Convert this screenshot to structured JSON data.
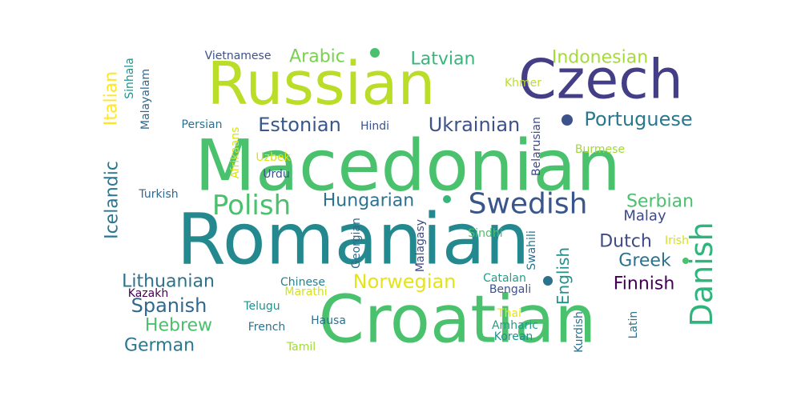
{
  "words": [
    {
      "text": "Macedonian",
      "color": "#4ac16d"
    },
    {
      "text": "Romanian",
      "color": "#23898e"
    },
    {
      "text": "Croatian",
      "color": "#4ac16d"
    },
    {
      "text": "Russian",
      "color": "#bade28"
    },
    {
      "text": "Czech",
      "color": "#433e85"
    },
    {
      "text": "Swedish",
      "color": "#39568c"
    },
    {
      "text": "Polish",
      "color": "#4ac16d"
    },
    {
      "text": "Danish",
      "color": "#2fb47c"
    },
    {
      "text": "Norwegian",
      "color": "#e5e419"
    },
    {
      "text": "Ukrainian",
      "color": "#3b528b"
    },
    {
      "text": "Estonian",
      "color": "#38588c"
    },
    {
      "text": "Portuguese",
      "color": "#2a788e"
    },
    {
      "text": "Hungarian",
      "color": "#2c728e"
    },
    {
      "text": "Arabic",
      "color": "#7ad151"
    },
    {
      "text": "Latvian",
      "color": "#35b779"
    },
    {
      "text": "Indonesian",
      "color": "#a5db36"
    },
    {
      "text": "Serbian",
      "color": "#4ac16d"
    },
    {
      "text": "Malay",
      "color": "#3e4989"
    },
    {
      "text": "Dutch",
      "color": "#3e4989"
    },
    {
      "text": "Greek",
      "color": "#2c728e"
    },
    {
      "text": "Finnish",
      "color": "#440154"
    },
    {
      "text": "English",
      "color": "#21918c"
    },
    {
      "text": "Spanish",
      "color": "#31688e"
    },
    {
      "text": "Lithuanian",
      "color": "#2c728e"
    },
    {
      "text": "Hebrew",
      "color": "#4ac16d"
    },
    {
      "text": "German",
      "color": "#2a788e"
    },
    {
      "text": "Icelandic",
      "color": "#2a788e"
    },
    {
      "text": "Italian",
      "color": "#fde725"
    },
    {
      "text": "Vietnamese",
      "color": "#3b528b"
    },
    {
      "text": "Sinhala",
      "color": "#21918c"
    },
    {
      "text": "Malayalam",
      "color": "#31688e"
    },
    {
      "text": "Persian",
      "color": "#2c728e"
    },
    {
      "text": "Afrikaans",
      "color": "#d8e219"
    },
    {
      "text": "Hindi",
      "color": "#3b528b"
    },
    {
      "text": "Khmer",
      "color": "#bade28"
    },
    {
      "text": "Belarusian",
      "color": "#3e4989"
    },
    {
      "text": "Burmese",
      "color": "#a0da39"
    },
    {
      "text": "Uzbek",
      "color": "#d8e219"
    },
    {
      "text": "Urdu",
      "color": "#3b528b"
    },
    {
      "text": "Turkish",
      "color": "#31688e"
    },
    {
      "text": "Malagasy",
      "color": "#3e4989"
    },
    {
      "text": "Georgian",
      "color": "#31688e"
    },
    {
      "text": "Sindhi",
      "color": "#4ac16d"
    },
    {
      "text": "Swahili",
      "color": "#2c728e"
    },
    {
      "text": "Irish",
      "color": "#d2e21b"
    },
    {
      "text": "Chinese",
      "color": "#26828e"
    },
    {
      "text": "Marathi",
      "color": "#d2e21b"
    },
    {
      "text": "Kazakh",
      "color": "#440154"
    },
    {
      "text": "Catalan",
      "color": "#1f9e89"
    },
    {
      "text": "Bengali",
      "color": "#3b528b"
    },
    {
      "text": "Telugu",
      "color": "#21918c"
    },
    {
      "text": "Hausa",
      "color": "#2c728e"
    },
    {
      "text": "French",
      "color": "#2c728e"
    },
    {
      "text": "Thai",
      "color": "#e5e419"
    },
    {
      "text": "Amharic",
      "color": "#1f9e89"
    },
    {
      "text": "Korean",
      "color": "#21918c"
    },
    {
      "text": "Kurdish",
      "color": "#2c728e"
    },
    {
      "text": "Latin",
      "color": "#2c728e"
    },
    {
      "text": "Tamil",
      "color": "#a0da39"
    }
  ],
  "dots": [
    {
      "color": "#4ac16d"
    },
    {
      "color": "#3b528b"
    },
    {
      "color": "#35b779"
    },
    {
      "color": "#4ac16d"
    },
    {
      "color": "#2c728e"
    }
  ]
}
